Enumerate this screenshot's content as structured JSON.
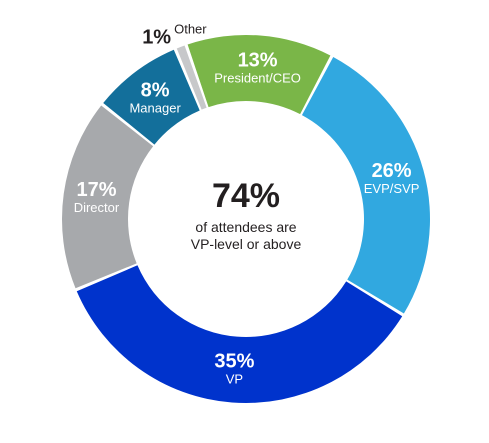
{
  "chart_data": {
    "type": "pie",
    "variant": "donut",
    "categories": [
      "President/CEO",
      "EVP/SVP",
      "VP",
      "Director",
      "Manager",
      "Other"
    ],
    "values": [
      13,
      26,
      35,
      17,
      8,
      1
    ],
    "value_labels": [
      "13%",
      "26%",
      "35%",
      "17%",
      "8%",
      "1%"
    ],
    "colors": [
      "#7ab648",
      "#31a8e0",
      "#0033cc",
      "#a7a9ac",
      "#136f9b",
      "#c7c8ca"
    ],
    "center": {
      "value": "74%",
      "line1": "of attendees are",
      "line2": "VP-level or above"
    }
  }
}
